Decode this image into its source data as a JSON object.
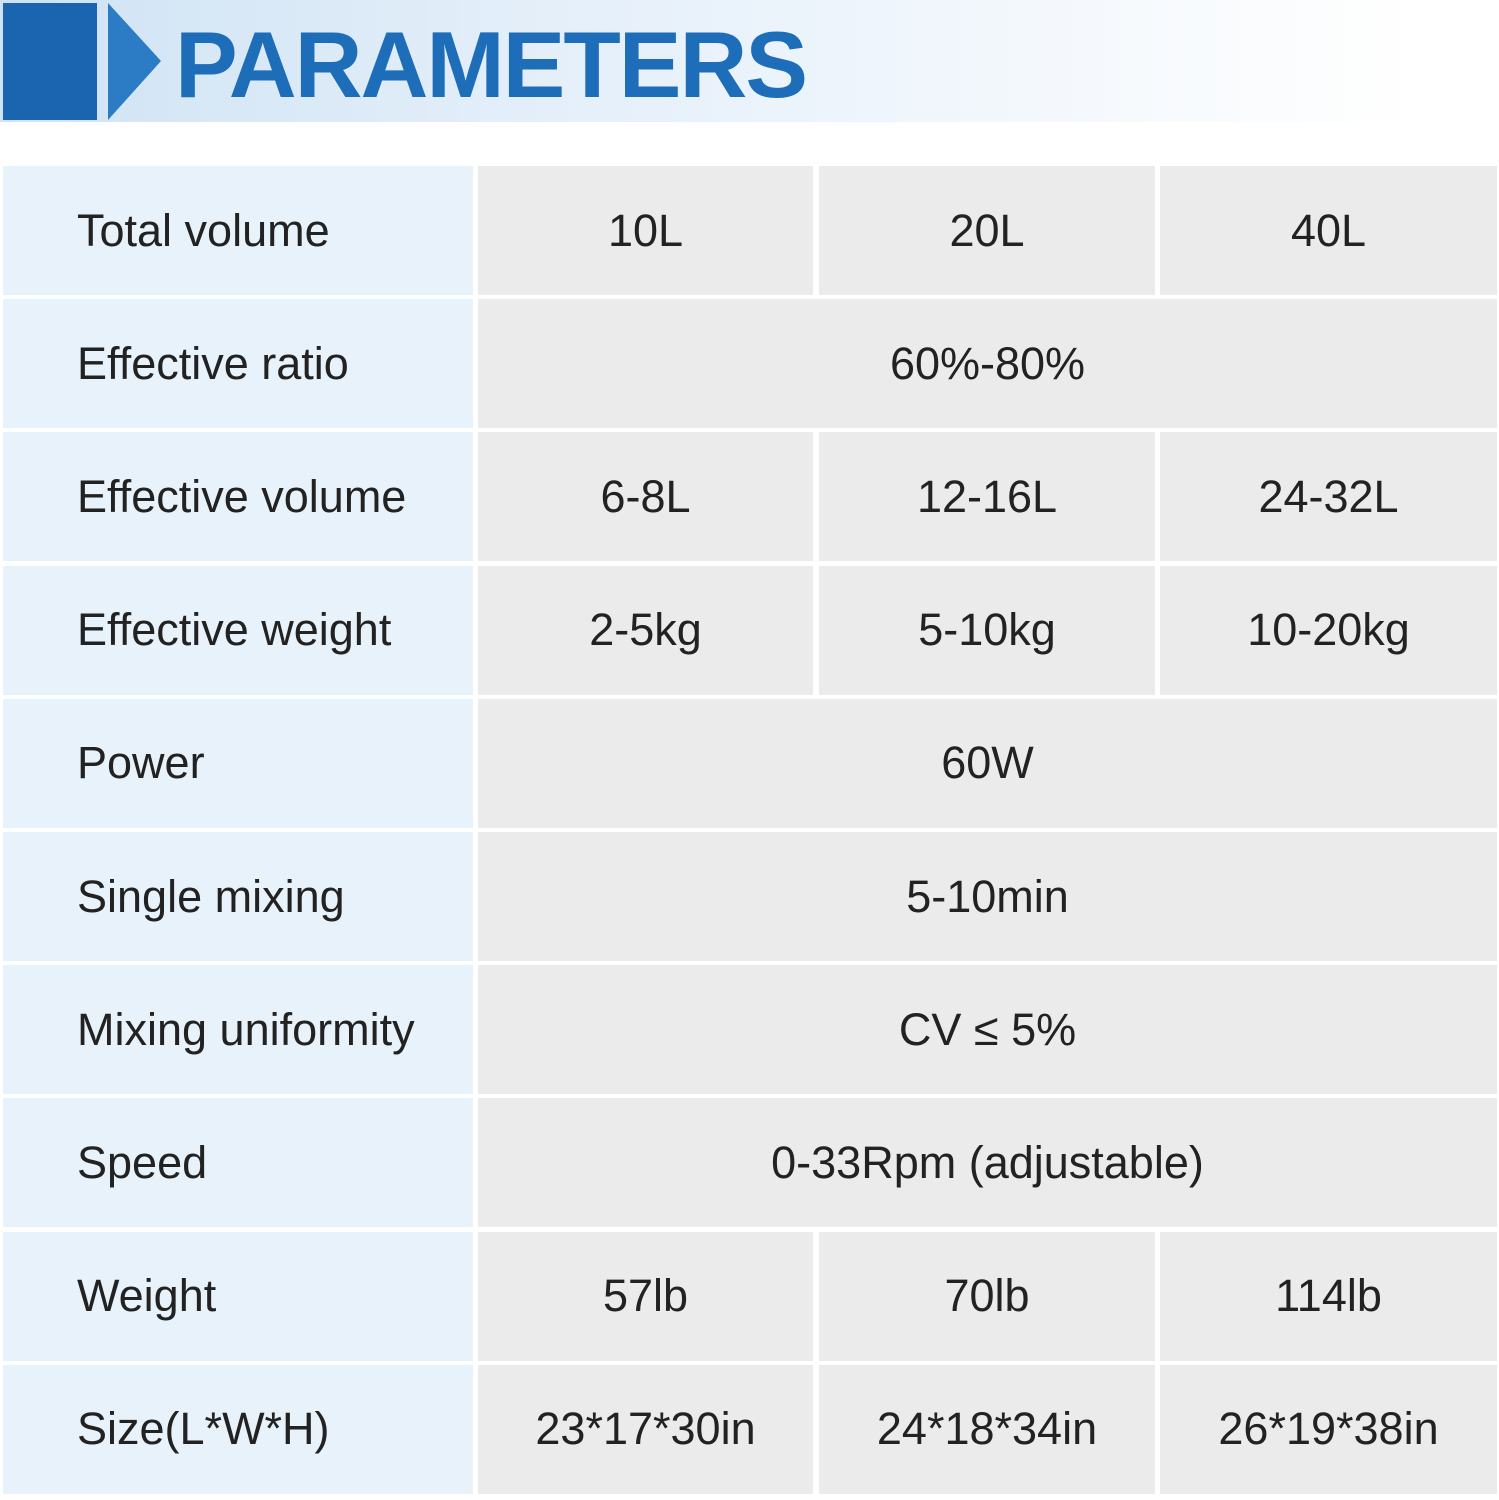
{
  "header": {
    "title": "PARAMETERS"
  },
  "table": {
    "rows": [
      {
        "label": "Total volume",
        "values": [
          "10L",
          "20L",
          "40L"
        ]
      },
      {
        "label": "Effective ratio",
        "values": [
          "60%-80%"
        ]
      },
      {
        "label": "Effective volume",
        "values": [
          "6-8L",
          "12-16L",
          "24-32L"
        ]
      },
      {
        "label": "Effective weight",
        "values": [
          "2-5kg",
          "5-10kg",
          "10-20kg"
        ]
      },
      {
        "label": "Power",
        "values": [
          "60W"
        ]
      },
      {
        "label": "Single mixing",
        "values": [
          "5-10min"
        ]
      },
      {
        "label": "Mixing uniformity",
        "values": [
          "CV ≤ 5%"
        ]
      },
      {
        "label": "Speed",
        "values": [
          "0-33Rpm (adjustable)"
        ]
      },
      {
        "label": "Weight",
        "values": [
          "57lb",
          "70lb",
          "114lb"
        ]
      },
      {
        "label": "Size(L*W*H)",
        "values": [
          "23*17*30in",
          "24*18*34in",
          "26*19*38in"
        ]
      }
    ]
  }
}
